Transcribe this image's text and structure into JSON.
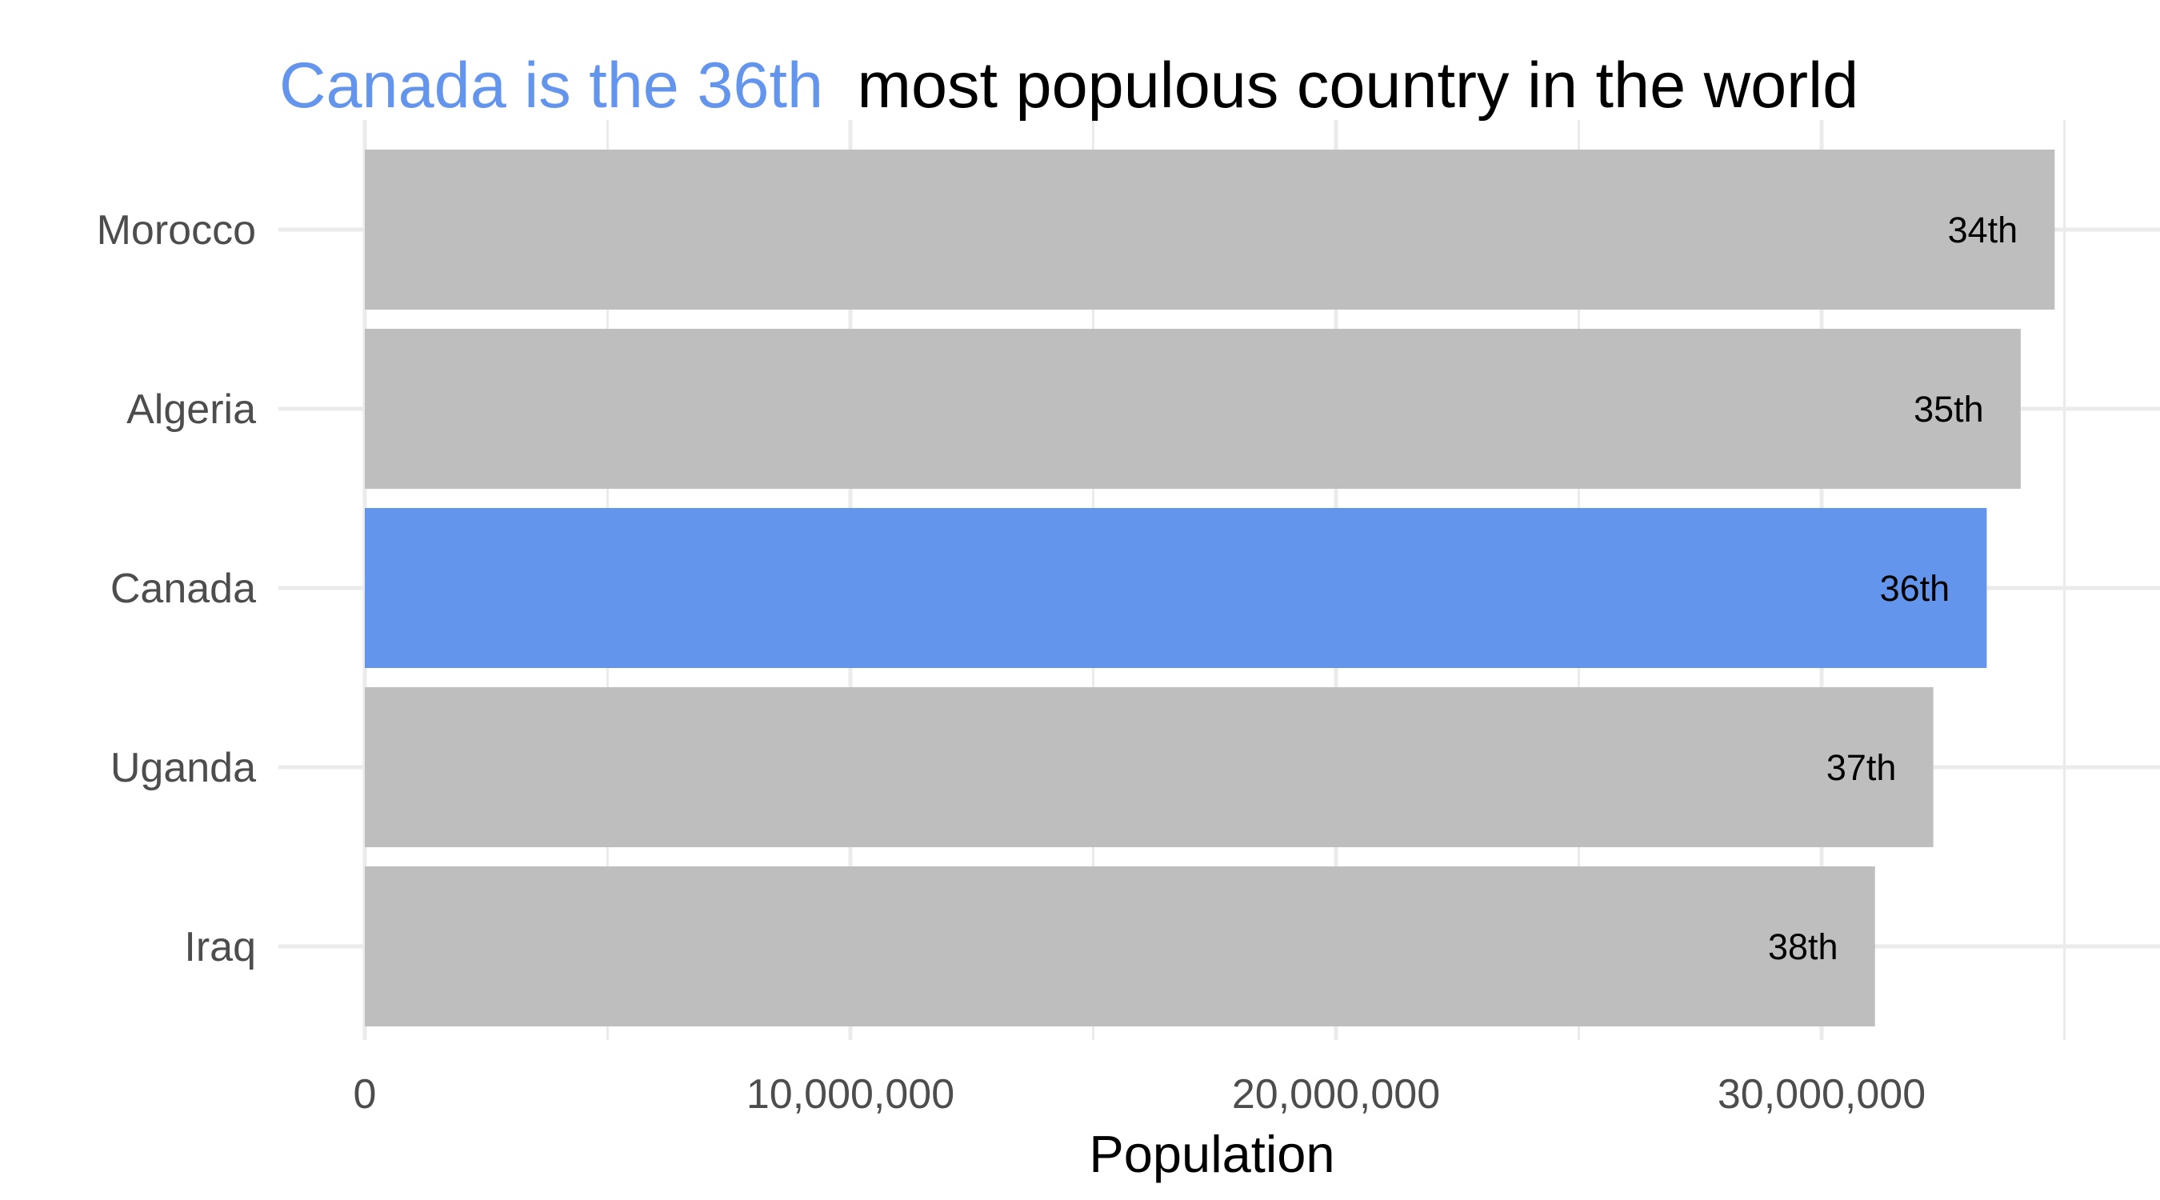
{
  "chart_data": {
    "type": "bar",
    "orientation": "horizontal",
    "title": {
      "highlight": "Canada is the 36th",
      "rest": "most populous country in the world",
      "highlight_color": "#6495ED"
    },
    "categories": [
      "Morocco",
      "Algeria",
      "Canada",
      "Uganda",
      "Iraq"
    ],
    "values": [
      34800000,
      34100000,
      33400000,
      32300000,
      31100000
    ],
    "labels": [
      "34th",
      "35th",
      "36th",
      "37th",
      "38th"
    ],
    "highlight_category": "Canada",
    "colors": {
      "bar": "#BEBEBE",
      "highlight_bar": "#6495ED",
      "grid": "#EBEBEB"
    },
    "xlabel": "Population",
    "ylabel": "",
    "xlim": [
      0,
      35000000
    ],
    "x_ticks": [
      0,
      10000000,
      20000000,
      30000000
    ],
    "x_tick_labels": [
      "0",
      "10,000,000",
      "20,000,000",
      "30,000,000"
    ],
    "grid": true,
    "legend": "none"
  }
}
